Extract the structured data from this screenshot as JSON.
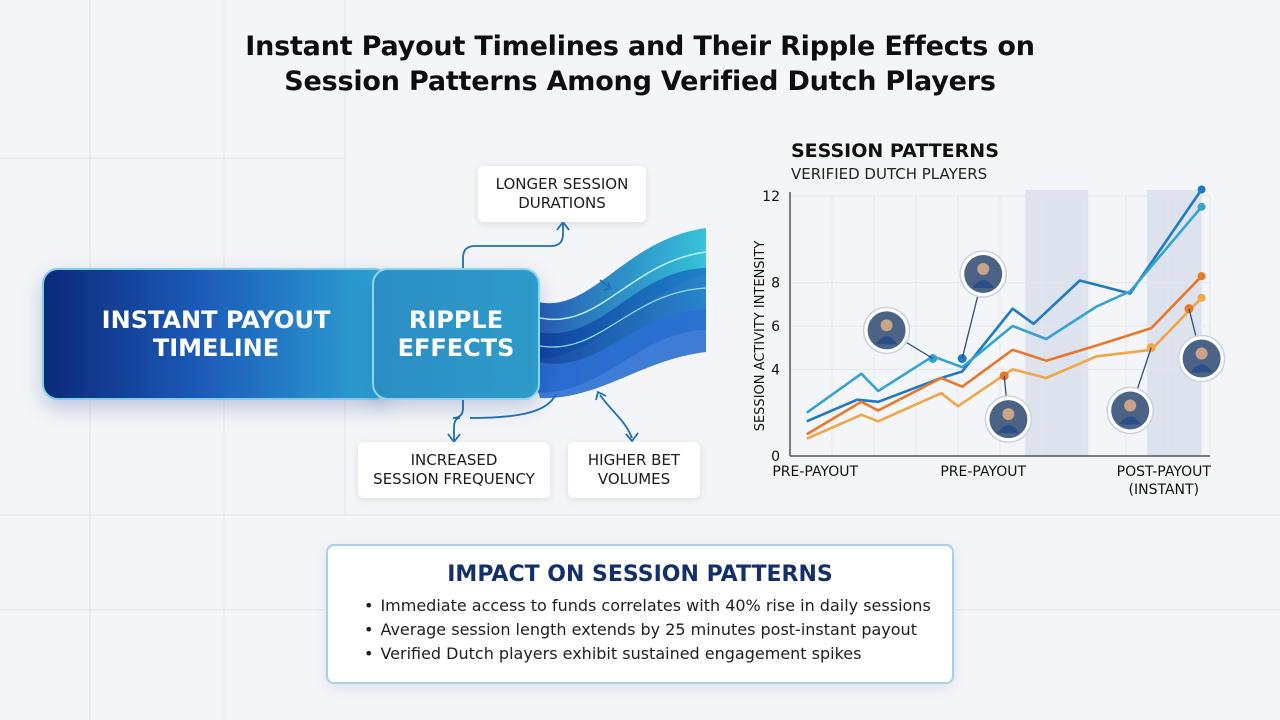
{
  "title": {
    "line1": "Instant Payout Timelines and Their Ripple Effects on",
    "line2": "Session Patterns Among Verified Dutch Players"
  },
  "diagram": {
    "main_box": {
      "line1": "INSTANT PAYOUT",
      "line2": "TIMELINE"
    },
    "ripple_box": {
      "line1": "RIPPLE",
      "line2": "EFFECTS"
    },
    "notes": {
      "longer": {
        "line1": "LONGER SESSION",
        "line2": "DURATIONS"
      },
      "frequency": {
        "line1": "INCREASED",
        "line2": "SESSION FREQUENCY"
      },
      "bet": {
        "line1": "HIGHER BET",
        "line2": "VOLUMES"
      }
    },
    "colors": {
      "navy": "#0b2a7a",
      "blue": "#1c5ab8",
      "cyan": "#2ea6d4",
      "arrow": "#1f6fb8"
    }
  },
  "chart_data": {
    "type": "line",
    "title": "SESSION PATTERNS",
    "subtitle": "VERIFIED DUTCH PLAYERS",
    "ylabel": "SESSION ACTIVITY INTENSITY",
    "ylim": [
      0,
      12
    ],
    "yticks": [
      0,
      4,
      6,
      8,
      12
    ],
    "xlim": [
      0,
      10
    ],
    "x_tick_labels": [
      {
        "x": 0.6,
        "line1": "PRE-PAYOUT",
        "line2": ""
      },
      {
        "x": 4.6,
        "line1": "PRE-PAYOUT",
        "line2": ""
      },
      {
        "x": 8.9,
        "line1": "POST-PAYOUT",
        "line2": "(INSTANT)"
      }
    ],
    "shaded_bands": [
      [
        5.6,
        7.1
      ],
      [
        8.5,
        9.8
      ]
    ],
    "grid": true,
    "legend": "none",
    "series": [
      {
        "color": "#1f7ac4",
        "points": [
          [
            0.4,
            1.6
          ],
          [
            1.6,
            2.6
          ],
          [
            2.1,
            2.5
          ],
          [
            3.6,
            3.6
          ],
          [
            4.1,
            3.9
          ],
          [
            5.3,
            6.8
          ],
          [
            5.8,
            6.1
          ],
          [
            6.9,
            8.1
          ],
          [
            8.1,
            7.5
          ],
          [
            9.8,
            12.3
          ]
        ]
      },
      {
        "color": "#35a3cf",
        "points": [
          [
            0.4,
            2.0
          ],
          [
            1.7,
            3.8
          ],
          [
            2.1,
            3.0
          ],
          [
            3.4,
            4.6
          ],
          [
            4.1,
            4.1
          ],
          [
            5.3,
            6.0
          ],
          [
            6.1,
            5.4
          ],
          [
            7.3,
            6.9
          ],
          [
            8.1,
            7.6
          ],
          [
            9.8,
            11.5
          ]
        ]
      },
      {
        "color": "#e8772a",
        "points": [
          [
            0.4,
            1.0
          ],
          [
            1.7,
            2.5
          ],
          [
            2.1,
            2.1
          ],
          [
            3.6,
            3.6
          ],
          [
            4.1,
            3.2
          ],
          [
            5.3,
            4.9
          ],
          [
            6.1,
            4.4
          ],
          [
            7.3,
            5.1
          ],
          [
            8.6,
            5.9
          ],
          [
            9.8,
            8.3
          ]
        ]
      },
      {
        "color": "#f0a548",
        "points": [
          [
            0.4,
            0.8
          ],
          [
            1.7,
            1.9
          ],
          [
            2.1,
            1.6
          ],
          [
            3.6,
            2.9
          ],
          [
            4.0,
            2.3
          ],
          [
            5.3,
            4.0
          ],
          [
            6.1,
            3.6
          ],
          [
            7.3,
            4.6
          ],
          [
            8.6,
            4.9
          ],
          [
            9.8,
            7.3
          ]
        ]
      }
    ],
    "markers": [
      {
        "x": 3.4,
        "y": 4.5,
        "color": "#35a3cf"
      },
      {
        "x": 4.1,
        "y": 4.5,
        "color": "#1f7ac4"
      },
      {
        "x": 5.1,
        "y": 3.7,
        "color": "#e8772a"
      },
      {
        "x": 8.6,
        "y": 5.0,
        "color": "#f0a548"
      },
      {
        "x": 9.5,
        "y": 6.8,
        "color": "#e8772a"
      }
    ]
  },
  "impact": {
    "title": "IMPACT ON SESSION PATTERNS",
    "bullets": [
      "Immediate access to funds correlates with 40% rise in daily sessions",
      "Average session length extends by 25 minutes post-instant payout",
      "Verified Dutch players exhibit sustained engagement spikes"
    ]
  }
}
